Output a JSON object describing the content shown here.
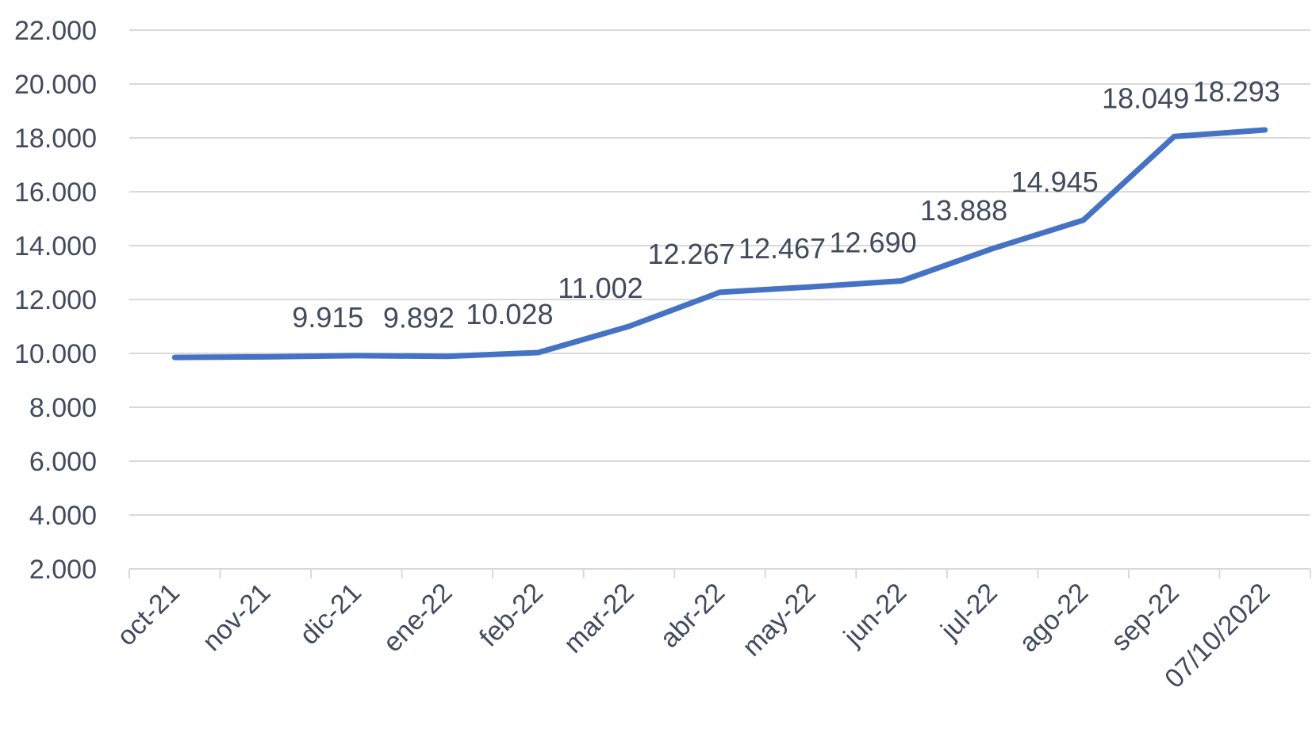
{
  "chart_data": {
    "type": "line",
    "title": "",
    "xlabel": "",
    "ylabel": "",
    "categories": [
      "oct-21",
      "nov-21",
      "dic-21",
      "ene-22",
      "feb-22",
      "mar-22",
      "abr-22",
      "may-22",
      "jun-22",
      "jul-22",
      "ago-22",
      "sep-22",
      "07/10/2022"
    ],
    "series": [
      {
        "color": "#4472c4",
        "values": [
          9850,
          9870,
          9915,
          9892,
          10028,
          11002,
          12267,
          12467,
          12690,
          13888,
          14945,
          18049,
          18293
        ],
        "data_labels": [
          "",
          "",
          "9.915",
          "9.892",
          "10.028",
          "11.002",
          "12.267",
          "12.467",
          "12.690",
          "13.888",
          "14.945",
          "18.049",
          "18.293"
        ]
      }
    ],
    "ylim": [
      2000,
      22000
    ],
    "y_ticks": [
      2000,
      4000,
      6000,
      8000,
      10000,
      12000,
      14000,
      16000,
      18000,
      20000,
      22000
    ],
    "y_tick_labels": [
      "2.000",
      "4.000",
      "6.000",
      "8.000",
      "10.000",
      "12.000",
      "14.000",
      "16.000",
      "18.000",
      "20.000",
      "22.000"
    ],
    "grid": true,
    "legend": "none"
  }
}
